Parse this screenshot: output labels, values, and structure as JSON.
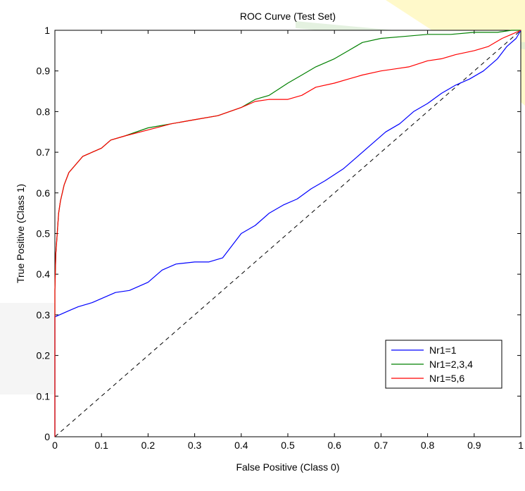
{
  "chart_data": {
    "type": "line",
    "title": "ROC Curve (Test Set)",
    "xlabel": "False Positive (Class 0)",
    "ylabel": "True Positive (Class 1)",
    "xlim": [
      0,
      1
    ],
    "ylim": [
      0,
      1
    ],
    "x_ticks": [
      0,
      0.1,
      0.2,
      0.3,
      0.4,
      0.5,
      0.6,
      0.7,
      0.8,
      0.9,
      1
    ],
    "x_tick_labels": [
      "0",
      "0.1",
      "0.2",
      "0.3",
      "0.4",
      "0.5",
      "0.6",
      "0.7",
      "0.8",
      "0.9",
      "1"
    ],
    "y_ticks": [
      0,
      0.1,
      0.2,
      0.3,
      0.4,
      0.5,
      0.6,
      0.7,
      0.8,
      0.9,
      1
    ],
    "y_tick_labels": [
      "0",
      "0.1",
      "0.2",
      "0.3",
      "0.4",
      "0.5",
      "0.6",
      "0.7",
      "0.8",
      "0.9",
      "1"
    ],
    "grid": false,
    "legend_position": "lower-right",
    "reference_line": {
      "style": "dashed",
      "color": "#000000",
      "x": [
        0,
        1
      ],
      "y": [
        0,
        1
      ]
    },
    "series": [
      {
        "name": "Nr1=1",
        "color": "#0000ff",
        "x": [
          0,
          0,
          0.01,
          0.03,
          0.05,
          0.08,
          0.1,
          0.13,
          0.16,
          0.2,
          0.23,
          0.26,
          0.3,
          0.33,
          0.36,
          0.38,
          0.4,
          0.43,
          0.46,
          0.49,
          0.52,
          0.55,
          0.58,
          0.62,
          0.65,
          0.68,
          0.71,
          0.74,
          0.77,
          0.8,
          0.83,
          0.86,
          0.89,
          0.92,
          0.95,
          0.97,
          0.99,
          1
        ],
        "y": [
          0,
          0.295,
          0.3,
          0.31,
          0.32,
          0.33,
          0.34,
          0.355,
          0.36,
          0.38,
          0.41,
          0.425,
          0.43,
          0.43,
          0.44,
          0.47,
          0.5,
          0.52,
          0.55,
          0.57,
          0.585,
          0.61,
          0.63,
          0.66,
          0.69,
          0.72,
          0.75,
          0.77,
          0.8,
          0.82,
          0.845,
          0.865,
          0.88,
          0.9,
          0.93,
          0.96,
          0.98,
          1
        ]
      },
      {
        "name": "Nr1=2,3,4",
        "color": "#008000",
        "x": [
          0,
          0,
          0.002,
          0.005,
          0.008,
          0.012,
          0.02,
          0.03,
          0.045,
          0.06,
          0.08,
          0.1,
          0.12,
          0.15,
          0.2,
          0.25,
          0.3,
          0.35,
          0.4,
          0.43,
          0.46,
          0.5,
          0.53,
          0.56,
          0.6,
          0.63,
          0.66,
          0.7,
          0.75,
          0.8,
          0.85,
          0.9,
          0.95,
          0.98,
          1
        ],
        "y": [
          0,
          0.36,
          0.45,
          0.5,
          0.55,
          0.58,
          0.62,
          0.65,
          0.67,
          0.69,
          0.7,
          0.71,
          0.73,
          0.74,
          0.76,
          0.77,
          0.78,
          0.79,
          0.81,
          0.83,
          0.84,
          0.87,
          0.89,
          0.91,
          0.93,
          0.95,
          0.97,
          0.98,
          0.985,
          0.99,
          0.99,
          0.995,
          0.995,
          1,
          1
        ]
      },
      {
        "name": "Nr1=5,6",
        "color": "#ff0000",
        "x": [
          0,
          0,
          0.002,
          0.005,
          0.008,
          0.012,
          0.02,
          0.03,
          0.045,
          0.06,
          0.08,
          0.1,
          0.12,
          0.15,
          0.2,
          0.25,
          0.3,
          0.35,
          0.4,
          0.43,
          0.46,
          0.5,
          0.53,
          0.56,
          0.6,
          0.63,
          0.66,
          0.7,
          0.73,
          0.76,
          0.8,
          0.83,
          0.86,
          0.9,
          0.93,
          0.96,
          0.98,
          1
        ],
        "y": [
          0,
          0.36,
          0.45,
          0.5,
          0.55,
          0.58,
          0.62,
          0.65,
          0.67,
          0.69,
          0.7,
          0.71,
          0.73,
          0.74,
          0.755,
          0.77,
          0.78,
          0.79,
          0.81,
          0.825,
          0.83,
          0.83,
          0.84,
          0.86,
          0.87,
          0.88,
          0.89,
          0.9,
          0.905,
          0.91,
          0.925,
          0.93,
          0.94,
          0.95,
          0.96,
          0.98,
          0.99,
          1
        ]
      }
    ]
  }
}
